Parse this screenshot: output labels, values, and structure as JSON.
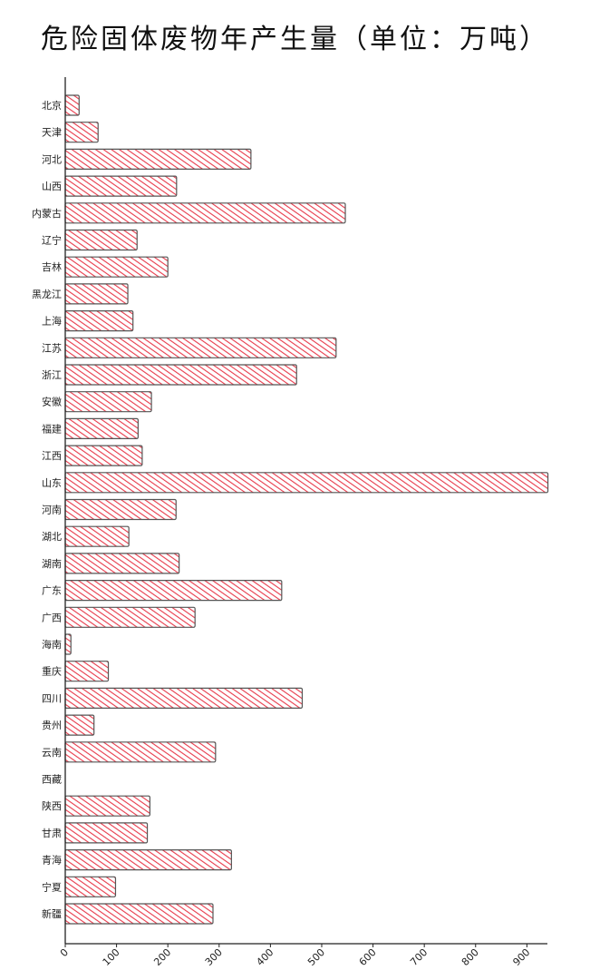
{
  "chart_data": {
    "type": "bar",
    "orientation": "horizontal",
    "title": "危险固体废物年产生量（单位：万吨）",
    "xlabel": "",
    "ylabel": "",
    "xlim": [
      0,
      940
    ],
    "xticks": [
      0,
      100,
      200,
      300,
      400,
      500,
      600,
      700,
      800,
      900
    ],
    "grid": false,
    "bar_color": "#e8394a",
    "bar_edge_color": "#555555",
    "style": "hand-drawn hatched",
    "categories": [
      "北京",
      "天津",
      "河北",
      "山西",
      "内蒙古",
      "辽宁",
      "吉林",
      "黑龙江",
      "上海",
      "江苏",
      "浙江",
      "安徽",
      "福建",
      "江西",
      "山东",
      "河南",
      "湖北",
      "湖南",
      "广东",
      "广西",
      "海南",
      "重庆",
      "四川",
      "贵州",
      "云南",
      "西藏",
      "陕西",
      "甘肃",
      "青海",
      "宁夏",
      "新疆"
    ],
    "values": [
      27,
      64,
      362,
      217,
      546,
      140,
      200,
      122,
      132,
      528,
      451,
      168,
      142,
      150,
      941,
      216,
      124,
      222,
      422,
      253,
      11,
      84,
      462,
      56,
      293,
      0,
      165,
      160,
      324,
      98,
      288
    ]
  }
}
